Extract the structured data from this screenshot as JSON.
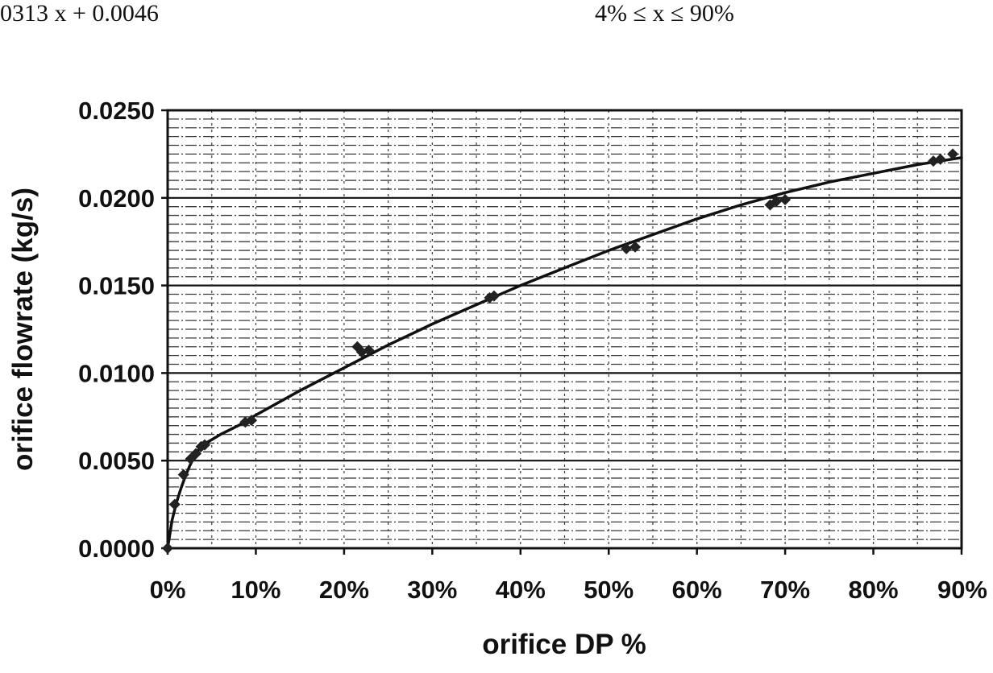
{
  "header": {
    "equation_text": "0313 x + 0.0046",
    "range_text": "4% ≤ x ≤ 90%"
  },
  "chart_data": {
    "type": "scatter",
    "title": "",
    "xlabel": "orifice DP %",
    "ylabel": "orifice flowrate (kg/s)",
    "xlim": [
      0,
      90
    ],
    "ylim": [
      0,
      0.025
    ],
    "x_unit": "%",
    "x_ticks": [
      0,
      10,
      20,
      30,
      40,
      50,
      60,
      70,
      80,
      90
    ],
    "x_tick_labels": [
      "0%",
      "10%",
      "20%",
      "30%",
      "40%",
      "50%",
      "60%",
      "70%",
      "80%",
      "90%"
    ],
    "y_ticks": [
      0,
      0.005,
      0.01,
      0.015,
      0.02,
      0.025
    ],
    "y_tick_labels": [
      "0.0000",
      "0.0050",
      "0.0100",
      "0.0150",
      "0.0200",
      "0.0250"
    ],
    "grid": {
      "horizontal_major": true,
      "horizontal_minor_step": 0.0005,
      "vertical_minor_step": 5
    },
    "legend": "none",
    "marker_color": "#222222",
    "line_color": "#111111",
    "series": [
      {
        "points": [
          [
            0,
            0
          ],
          [
            0.8,
            0.0025
          ],
          [
            1.8,
            0.0042
          ],
          [
            2.6,
            0.0051
          ],
          [
            3.2,
            0.0054
          ],
          [
            3.8,
            0.0058
          ],
          [
            4.2,
            0.0059
          ],
          [
            8.8,
            0.0072
          ],
          [
            9.5,
            0.0073
          ],
          [
            21.5,
            0.0115
          ],
          [
            22.0,
            0.0112
          ],
          [
            22.8,
            0.0113
          ],
          [
            36.5,
            0.0143
          ],
          [
            37.0,
            0.0144
          ],
          [
            52.0,
            0.0171
          ],
          [
            53.0,
            0.0172
          ],
          [
            68.3,
            0.0196
          ],
          [
            69.0,
            0.0198
          ],
          [
            70.0,
            0.0199
          ],
          [
            86.8,
            0.0221
          ],
          [
            87.6,
            0.0222
          ],
          [
            89.0,
            0.0225
          ]
        ]
      },
      {
        "type": "line",
        "points": [
          [
            0,
            0
          ],
          [
            0.5,
            0.0016
          ],
          [
            1,
            0.0026
          ],
          [
            1.5,
            0.0034
          ],
          [
            2,
            0.0041
          ],
          [
            2.5,
            0.0047
          ],
          [
            3,
            0.0052
          ],
          [
            3.5,
            0.0056
          ],
          [
            4,
            0.0059
          ],
          [
            6,
            0.0065
          ],
          [
            8,
            0.007
          ],
          [
            10,
            0.0076
          ],
          [
            15,
            0.009
          ],
          [
            20,
            0.0103
          ],
          [
            25,
            0.0116
          ],
          [
            30,
            0.0128
          ],
          [
            35,
            0.0139
          ],
          [
            40,
            0.015
          ],
          [
            45,
            0.016
          ],
          [
            50,
            0.017
          ],
          [
            55,
            0.0179
          ],
          [
            60,
            0.0188
          ],
          [
            65,
            0.0196
          ],
          [
            70,
            0.0203
          ],
          [
            75,
            0.0209
          ],
          [
            80,
            0.0214
          ],
          [
            85,
            0.0219
          ],
          [
            90,
            0.0223
          ]
        ]
      }
    ]
  }
}
